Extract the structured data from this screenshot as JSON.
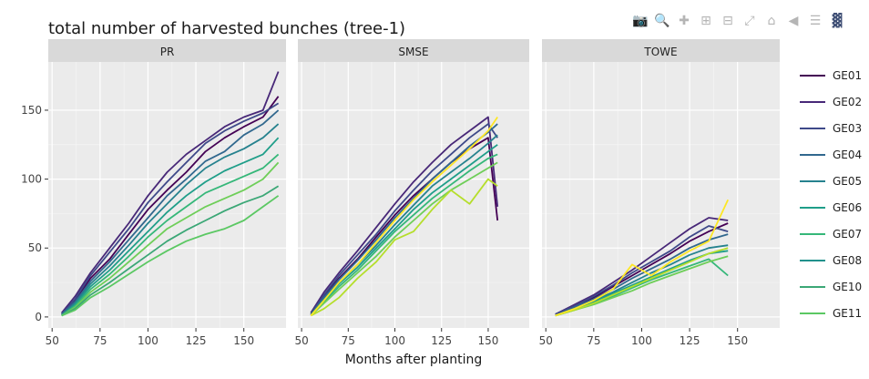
{
  "title": "total number of harvested bunches (tree-1)",
  "modebar": {
    "icons": [
      "camera-icon",
      "zoom-icon",
      "pan-icon",
      "zoom-in-icon",
      "zoom-out-icon",
      "autoscale-icon",
      "home-icon",
      "spike-lines-icon",
      "compare-hover-icon",
      "plotly-logo-icon"
    ]
  },
  "chart_data": {
    "type": "line",
    "xlabel": "Months after planting",
    "ylabel": "",
    "xlim": [
      48,
      172
    ],
    "ylim": [
      -8,
      185
    ],
    "x_ticks": [
      50,
      75,
      100,
      125,
      150
    ],
    "y_ticks": [
      0,
      50,
      100,
      150
    ],
    "grid": true,
    "legend_position": "right",
    "panels": [
      {
        "name": "PR",
        "series": [
          {
            "name": "GE01",
            "color": "#440154",
            "x": [
              55,
              62,
              70,
              80,
              90,
              100,
              110,
              120,
              130,
              140,
              150,
              160,
              168
            ],
            "y": [
              2,
              12,
              28,
              42,
              60,
              78,
              92,
              105,
              120,
              130,
              138,
              145,
              160
            ]
          },
          {
            "name": "GE02",
            "color": "#482878",
            "x": [
              55,
              62,
              70,
              80,
              90,
              100,
              110,
              120,
              130,
              140,
              150,
              160,
              168
            ],
            "y": [
              3,
              15,
              32,
              50,
              68,
              88,
              105,
              118,
              128,
              138,
              145,
              150,
              178
            ]
          },
          {
            "name": "GE03",
            "color": "#3e4989",
            "x": [
              55,
              62,
              70,
              80,
              90,
              100,
              110,
              120,
              130,
              140,
              150,
              160,
              168
            ],
            "y": [
              2,
              13,
              30,
              47,
              64,
              83,
              98,
              112,
              126,
              135,
              142,
              148,
              155
            ]
          },
          {
            "name": "GE04",
            "color": "#31688e",
            "x": [
              55,
              62,
              70,
              80,
              90,
              100,
              110,
              120,
              130,
              140,
              150,
              160,
              168
            ],
            "y": [
              2,
              11,
              26,
              40,
              56,
              72,
              88,
              100,
              113,
              120,
              132,
              140,
              150
            ]
          },
          {
            "name": "GE05",
            "color": "#26828e",
            "x": [
              55,
              62,
              70,
              80,
              90,
              100,
              110,
              120,
              130,
              140,
              150,
              160,
              168
            ],
            "y": [
              1,
              10,
              24,
              37,
              52,
              68,
              82,
              96,
              108,
              116,
              122,
              130,
              140
            ]
          },
          {
            "name": "GE06",
            "color": "#1f9e89",
            "x": [
              55,
              62,
              70,
              80,
              90,
              100,
              110,
              120,
              130,
              140,
              150,
              160,
              168
            ],
            "y": [
              1,
              9,
              22,
              34,
              48,
              62,
              76,
              88,
              98,
              106,
              112,
              118,
              130
            ]
          },
          {
            "name": "GE07",
            "color": "#35b779",
            "x": [
              55,
              62,
              70,
              80,
              90,
              100,
              110,
              120,
              130,
              140,
              150,
              160,
              168
            ],
            "y": [
              1,
              8,
              20,
              31,
              44,
              58,
              70,
              80,
              90,
              96,
              102,
              108,
              118
            ]
          },
          {
            "name": "GE08",
            "color": "#6ece58",
            "x": [
              55,
              62,
              70,
              80,
              90,
              100,
              110,
              120,
              130,
              140,
              150,
              160,
              168
            ],
            "y": [
              1,
              7,
              18,
              28,
              40,
              52,
              64,
              72,
              80,
              86,
              92,
              100,
              112
            ]
          },
          {
            "name": "GE10",
            "color": "#3ba776",
            "x": [
              55,
              62,
              70,
              80,
              90,
              100,
              110,
              120,
              130,
              140,
              150,
              160,
              168
            ],
            "y": [
              1,
              6,
              16,
              25,
              35,
              45,
              55,
              63,
              70,
              77,
              83,
              88,
              95
            ]
          },
          {
            "name": "GE11",
            "color": "#5bc863",
            "x": [
              55,
              62,
              70,
              80,
              90,
              100,
              110,
              120,
              130,
              140,
              150,
              160,
              168
            ],
            "y": [
              1,
              5,
              14,
              22,
              31,
              40,
              48,
              55,
              60,
              64,
              70,
              80,
              88
            ]
          }
        ]
      },
      {
        "name": "SMSE",
        "series": [
          {
            "name": "GE01",
            "color": "#440154",
            "x": [
              55,
              62,
              70,
              80,
              90,
              100,
              110,
              120,
              130,
              140,
              150,
              155
            ],
            "y": [
              2,
              15,
              28,
              42,
              58,
              74,
              88,
              100,
              112,
              122,
              130,
              70
            ]
          },
          {
            "name": "GE02",
            "color": "#482878",
            "x": [
              55,
              62,
              70,
              80,
              90,
              100,
              110,
              120,
              130,
              140,
              150,
              155
            ],
            "y": [
              3,
              18,
              32,
              48,
              65,
              82,
              98,
              112,
              125,
              135,
              145,
              80
            ]
          },
          {
            "name": "GE03",
            "color": "#3e4989",
            "x": [
              55,
              62,
              70,
              80,
              90,
              100,
              110,
              120,
              130,
              140,
              150,
              155
            ],
            "y": [
              2,
              16,
              30,
              45,
              60,
              77,
              92,
              106,
              118,
              130,
              140,
              130
            ]
          },
          {
            "name": "GE04",
            "color": "#31688e",
            "x": [
              55,
              62,
              70,
              80,
              90,
              100,
              110,
              120,
              130,
              140,
              150,
              155
            ],
            "y": [
              2,
              14,
              27,
              41,
              56,
              72,
              86,
              100,
              112,
              124,
              134,
              140
            ]
          },
          {
            "name": "GE05",
            "color": "#26828e",
            "x": [
              55,
              62,
              70,
              80,
              90,
              100,
              110,
              120,
              130,
              140,
              150,
              155
            ],
            "y": [
              1,
              13,
              25,
              38,
              52,
              67,
              81,
              95,
              105,
              115,
              126,
              132
            ]
          },
          {
            "name": "GE06",
            "color": "#1f9e89",
            "x": [
              55,
              62,
              70,
              80,
              90,
              100,
              110,
              120,
              130,
              140,
              150,
              155
            ],
            "y": [
              1,
              12,
              24,
              36,
              50,
              64,
              78,
              90,
              100,
              110,
              120,
              125
            ]
          },
          {
            "name": "GE07",
            "color": "#35b779",
            "x": [
              55,
              62,
              70,
              80,
              90,
              100,
              110,
              120,
              130,
              140,
              150,
              155
            ],
            "y": [
              1,
              11,
              22,
              34,
              48,
              62,
              74,
              86,
              96,
              106,
              115,
              118
            ]
          },
          {
            "name": "GE08",
            "color": "#6ece58",
            "x": [
              55,
              62,
              70,
              80,
              90,
              100,
              110,
              120,
              130,
              140,
              150,
              155
            ],
            "y": [
              1,
              10,
              20,
              32,
              44,
              58,
              70,
              82,
              92,
              100,
              108,
              112
            ]
          },
          {
            "name": "GE10",
            "color": "#b5de2b",
            "x": [
              55,
              62,
              70,
              80,
              90,
              100,
              110,
              120,
              130,
              140,
              150,
              155
            ],
            "y": [
              1,
              6,
              14,
              28,
              40,
              56,
              62,
              78,
              92,
              82,
              100,
              95
            ]
          },
          {
            "name": "GE11",
            "color": "#fde725",
            "x": [
              55,
              62,
              70,
              80,
              90,
              100,
              110,
              120,
              130,
              140,
              150,
              155
            ],
            "y": [
              1,
              12,
              25,
              38,
              54,
              70,
              85,
              98,
              110,
              122,
              135,
              145
            ]
          }
        ]
      },
      {
        "name": "TOWE",
        "series": [
          {
            "name": "GE01",
            "color": "#440154",
            "x": [
              55,
              65,
              75,
              85,
              95,
              105,
              115,
              125,
              135,
              145
            ],
            "y": [
              2,
              8,
              14,
              22,
              30,
              38,
              46,
              55,
              62,
              68
            ]
          },
          {
            "name": "GE02",
            "color": "#482878",
            "x": [
              55,
              65,
              75,
              85,
              95,
              105,
              115,
              125,
              135,
              145
            ],
            "y": [
              2,
              9,
              16,
              25,
              34,
              44,
              54,
              64,
              72,
              70
            ]
          },
          {
            "name": "GE03",
            "color": "#3e4989",
            "x": [
              55,
              65,
              75,
              85,
              95,
              105,
              115,
              125,
              135,
              145
            ],
            "y": [
              2,
              8,
              15,
              23,
              32,
              40,
              48,
              58,
              66,
              62
            ]
          },
          {
            "name": "GE04",
            "color": "#31688e",
            "x": [
              55,
              65,
              75,
              85,
              95,
              105,
              115,
              125,
              135,
              145
            ],
            "y": [
              1,
              7,
              13,
              20,
              28,
              35,
              42,
              50,
              56,
              60
            ]
          },
          {
            "name": "GE05",
            "color": "#26828e",
            "x": [
              55,
              65,
              75,
              85,
              95,
              105,
              115,
              125,
              135,
              145
            ],
            "y": [
              1,
              6,
              12,
              18,
              25,
              32,
              38,
              45,
              50,
              52
            ]
          },
          {
            "name": "GE06",
            "color": "#1f9e89",
            "x": [
              55,
              65,
              75,
              85,
              95,
              105,
              115,
              125,
              135,
              145
            ],
            "y": [
              1,
              6,
              11,
              17,
              23,
              29,
              35,
              41,
              46,
              48
            ]
          },
          {
            "name": "GE07",
            "color": "#35b779",
            "x": [
              55,
              65,
              75,
              85,
              95,
              105,
              115,
              125,
              135,
              145
            ],
            "y": [
              1,
              5,
              10,
              15,
              21,
              27,
              32,
              37,
              42,
              30
            ]
          },
          {
            "name": "GE08",
            "color": "#6ece58",
            "x": [
              55,
              65,
              75,
              85,
              95,
              105,
              115,
              125,
              135,
              145
            ],
            "y": [
              1,
              5,
              9,
              14,
              19,
              25,
              30,
              35,
              40,
              44
            ]
          },
          {
            "name": "GE10",
            "color": "#b5de2b",
            "x": [
              55,
              65,
              75,
              85,
              95,
              105,
              115,
              125,
              135,
              145
            ],
            "y": [
              1,
              5,
              10,
              16,
              22,
              28,
              34,
              40,
              46,
              50
            ]
          },
          {
            "name": "GE11",
            "color": "#fde725",
            "x": [
              55,
              65,
              75,
              85,
              95,
              105,
              115,
              125,
              135,
              145
            ],
            "y": [
              1,
              6,
              12,
              20,
              38,
              30,
              40,
              48,
              55,
              85
            ]
          }
        ]
      }
    ],
    "legend": [
      {
        "name": "GE01",
        "color": "#440154"
      },
      {
        "name": "GE02",
        "color": "#482878"
      },
      {
        "name": "GE03",
        "color": "#3e4989"
      },
      {
        "name": "GE04",
        "color": "#31688e"
      },
      {
        "name": "GE05",
        "color": "#26828e"
      },
      {
        "name": "GE06",
        "color": "#1f9e89"
      },
      {
        "name": "GE07",
        "color": "#35b779"
      },
      {
        "name": "GE08",
        "color": "#21918c"
      },
      {
        "name": "GE10",
        "color": "#3ba776"
      },
      {
        "name": "GE11",
        "color": "#5bc863"
      }
    ]
  }
}
